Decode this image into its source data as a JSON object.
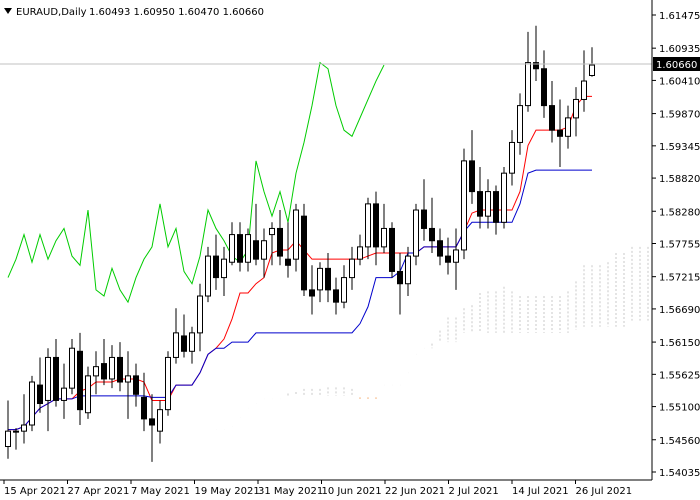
{
  "header": {
    "symbol": "EURAUD,Daily",
    "ohlc": "1.60493 1.60950 1.60470 1.60660"
  },
  "chart_data": {
    "type": "candlestick",
    "price_axis": {
      "ticks": [
        "1.61475",
        "1.60935",
        "1.60410",
        "1.59870",
        "1.59345",
        "1.58820",
        "1.58280",
        "1.57755",
        "1.57215",
        "1.56690",
        "1.56150",
        "1.55625",
        "1.55100",
        "1.54560",
        "1.54035"
      ],
      "current_price": "1.60660"
    },
    "date_axis": {
      "labels": [
        "15 Apr 2021",
        "27 Apr 2021",
        "7 May 2021",
        "19 May 2021",
        "31 May 2021",
        "10 Jun 2021",
        "22 Jun 2021",
        "2 Jul 2021",
        "14 Jul 2021",
        "26 Jul 2021"
      ]
    },
    "colors": {
      "background": "#ffffff",
      "candle": "#000000",
      "tenkan": "#ff0000",
      "kijun": "#0000cc",
      "chikou": "#00cc00",
      "cloud_bull": "#c8c8c8",
      "cloud_bear": "#f4a460",
      "price_line": "#c0c0c0"
    },
    "candles": [
      [
        1.5445,
        1.552,
        1.5425,
        1.547
      ],
      [
        1.547,
        1.5475,
        1.544,
        1.547
      ],
      [
        1.547,
        1.553,
        1.545,
        1.548
      ],
      [
        1.548,
        1.556,
        1.547,
        1.555
      ],
      [
        1.5545,
        1.559,
        1.55,
        1.5515
      ],
      [
        1.552,
        1.5605,
        1.547,
        1.559
      ],
      [
        1.559,
        1.562,
        1.551,
        1.552
      ],
      [
        1.552,
        1.558,
        1.549,
        1.554
      ],
      [
        1.554,
        1.562,
        1.553,
        1.5605
      ],
      [
        1.56,
        1.563,
        1.548,
        1.5505
      ],
      [
        1.55,
        1.5575,
        1.549,
        1.556
      ],
      [
        1.556,
        1.56,
        1.553,
        1.5575
      ],
      [
        1.558,
        1.562,
        1.5545,
        1.5555
      ],
      [
        1.5555,
        1.561,
        1.554,
        1.559
      ],
      [
        1.559,
        1.5615,
        1.5535,
        1.555
      ],
      [
        1.555,
        1.56,
        1.549,
        1.556
      ],
      [
        1.556,
        1.558,
        1.551,
        1.553
      ],
      [
        1.5525,
        1.5565,
        1.547,
        1.549
      ],
      [
        1.549,
        1.553,
        1.542,
        1.548
      ],
      [
        1.547,
        1.552,
        1.545,
        1.5505
      ],
      [
        1.5505,
        1.56,
        1.5495,
        1.559
      ],
      [
        1.559,
        1.567,
        1.558,
        1.563
      ],
      [
        1.5625,
        1.566,
        1.559,
        1.56
      ],
      [
        1.56,
        1.564,
        1.558,
        1.563
      ],
      [
        1.563,
        1.571,
        1.56,
        1.569
      ],
      [
        1.569,
        1.577,
        1.568,
        1.5755
      ],
      [
        1.5755,
        1.579,
        1.57,
        1.572
      ],
      [
        1.572,
        1.577,
        1.569,
        1.575
      ],
      [
        1.5745,
        1.581,
        1.574,
        1.579
      ],
      [
        1.579,
        1.581,
        1.573,
        1.5745
      ],
      [
        1.5745,
        1.58,
        1.573,
        1.579
      ],
      [
        1.578,
        1.584,
        1.574,
        1.575
      ],
      [
        1.575,
        1.58,
        1.572,
        1.578
      ],
      [
        1.579,
        1.581,
        1.574,
        1.58
      ],
      [
        1.58,
        1.583,
        1.574,
        1.5755
      ],
      [
        1.575,
        1.581,
        1.572,
        1.574
      ],
      [
        1.575,
        1.584,
        1.573,
        1.583
      ],
      [
        1.582,
        1.584,
        1.569,
        1.57
      ],
      [
        1.57,
        1.574,
        1.566,
        1.569
      ],
      [
        1.57,
        1.5745,
        1.568,
        1.5735
      ],
      [
        1.5735,
        1.576,
        1.568,
        1.57
      ],
      [
        1.57,
        1.572,
        1.566,
        1.568
      ],
      [
        1.568,
        1.574,
        1.567,
        1.572
      ],
      [
        1.572,
        1.577,
        1.57,
        1.575
      ],
      [
        1.575,
        1.579,
        1.574,
        1.577
      ],
      [
        1.577,
        1.585,
        1.575,
        1.584
      ],
      [
        1.584,
        1.586,
        1.574,
        1.577
      ],
      [
        1.577,
        1.584,
        1.576,
        1.58
      ],
      [
        1.58,
        1.581,
        1.572,
        1.573
      ],
      [
        1.573,
        1.576,
        1.566,
        1.571
      ],
      [
        1.571,
        1.577,
        1.569,
        1.5755
      ],
      [
        1.5755,
        1.584,
        1.574,
        1.583
      ],
      [
        1.583,
        1.588,
        1.578,
        1.58
      ],
      [
        1.58,
        1.585,
        1.576,
        1.578
      ],
      [
        1.578,
        1.58,
        1.574,
        1.5755
      ],
      [
        1.5755,
        1.5785,
        1.5725,
        1.5745
      ],
      [
        1.5745,
        1.58,
        1.57,
        1.5765
      ],
      [
        1.5765,
        1.593,
        1.575,
        1.591
      ],
      [
        1.591,
        1.596,
        1.584,
        1.586
      ],
      [
        1.586,
        1.59,
        1.58,
        1.582
      ],
      [
        1.582,
        1.588,
        1.58,
        1.586
      ],
      [
        1.586,
        1.587,
        1.579,
        1.581
      ],
      [
        1.581,
        1.59,
        1.58,
        1.589
      ],
      [
        1.589,
        1.596,
        1.587,
        1.594
      ],
      [
        1.594,
        1.602,
        1.592,
        1.6
      ],
      [
        1.6,
        1.612,
        1.599,
        1.607
      ],
      [
        1.607,
        1.613,
        1.604,
        1.606
      ],
      [
        1.606,
        1.609,
        1.598,
        1.6
      ],
      [
        1.6,
        1.604,
        1.594,
        1.596
      ],
      [
        1.596,
        1.601,
        1.59,
        1.595
      ],
      [
        1.595,
        1.6,
        1.593,
        1.598
      ],
      [
        1.598,
        1.603,
        1.595,
        1.601
      ],
      [
        1.601,
        1.609,
        1.599,
        1.604
      ],
      [
        1.6049,
        1.6095,
        1.6047,
        1.6066
      ]
    ]
  }
}
